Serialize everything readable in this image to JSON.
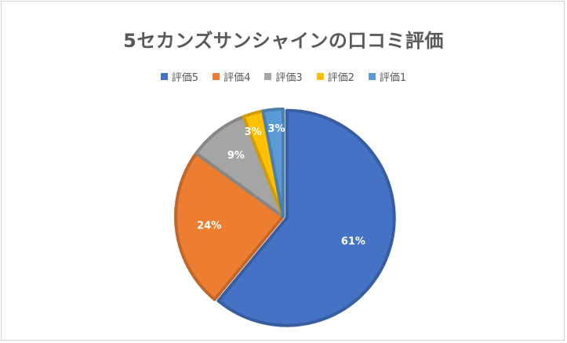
{
  "chart_data": {
    "type": "pie",
    "title": "5セカンズサンシャインの口コミ評価",
    "categories": [
      "評価5",
      "評価4",
      "評価3",
      "評価2",
      "評価1"
    ],
    "values": [
      61,
      24,
      9,
      3,
      3
    ],
    "data_labels": [
      "61%",
      "24%",
      "9%",
      "3%",
      "3%"
    ],
    "colors": [
      "#4472C4",
      "#ED7D31",
      "#A5A5A5",
      "#FFC000",
      "#5B9BD5"
    ],
    "legend_position": "top"
  }
}
